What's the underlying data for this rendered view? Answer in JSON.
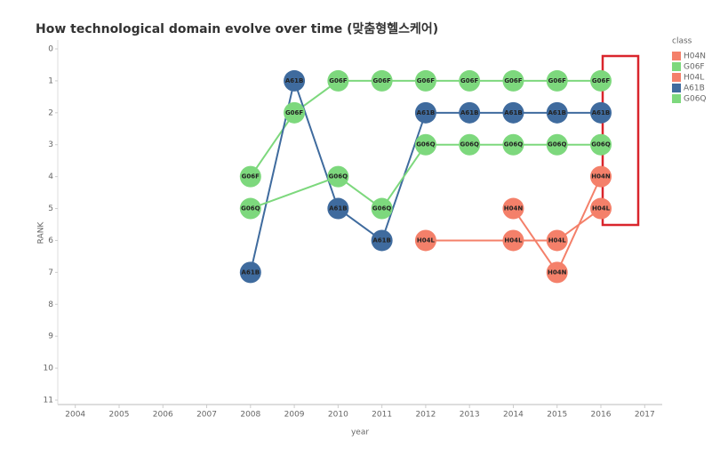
{
  "chart_data": {
    "type": "bump",
    "title": "How technological domain evolve over time (맞춤형헬스케어)",
    "x_label": "year",
    "y_label": "RANK",
    "xlim": [
      2003.6,
      2017.4
    ],
    "xticks": [
      2004,
      2005,
      2006,
      2007,
      2008,
      2009,
      2010,
      2011,
      2012,
      2013,
      2014,
      2015,
      2016,
      2017
    ],
    "ylim": [
      0,
      11
    ],
    "y_inverted": true,
    "yticks": [
      0,
      1,
      2,
      3,
      4,
      5,
      6,
      7,
      8,
      9,
      10,
      11
    ],
    "legend_title": "class",
    "legend_position": "right",
    "series": [
      {
        "name": "H04N",
        "color": "#f4806a",
        "x": [
          2014,
          2015,
          2016
        ],
        "values": [
          5,
          7,
          4
        ]
      },
      {
        "name": "G06F",
        "color": "#7dd87d",
        "x": [
          2008,
          2009,
          2010,
          2011,
          2012,
          2013,
          2014,
          2015,
          2016
        ],
        "values": [
          4,
          2,
          1,
          1,
          1,
          1,
          1,
          1,
          1
        ]
      },
      {
        "name": "H04L",
        "color": "#f4806a",
        "x": [
          2012,
          2014,
          2015,
          2016
        ],
        "values": [
          6,
          6,
          6,
          5
        ]
      },
      {
        "name": "A61B",
        "color": "#3f6b9e",
        "x": [
          2008,
          2009,
          2010,
          2011,
          2012,
          2013,
          2014,
          2015,
          2016
        ],
        "values": [
          7,
          1,
          5,
          6,
          2,
          2,
          2,
          2,
          2
        ]
      },
      {
        "name": "G06Q",
        "color": "#7dd87d",
        "x": [
          2008,
          2010,
          2011,
          2012,
          2013,
          2014,
          2015,
          2016
        ],
        "values": [
          5,
          4,
          5,
          3,
          3,
          3,
          3,
          3
        ]
      }
    ]
  }
}
